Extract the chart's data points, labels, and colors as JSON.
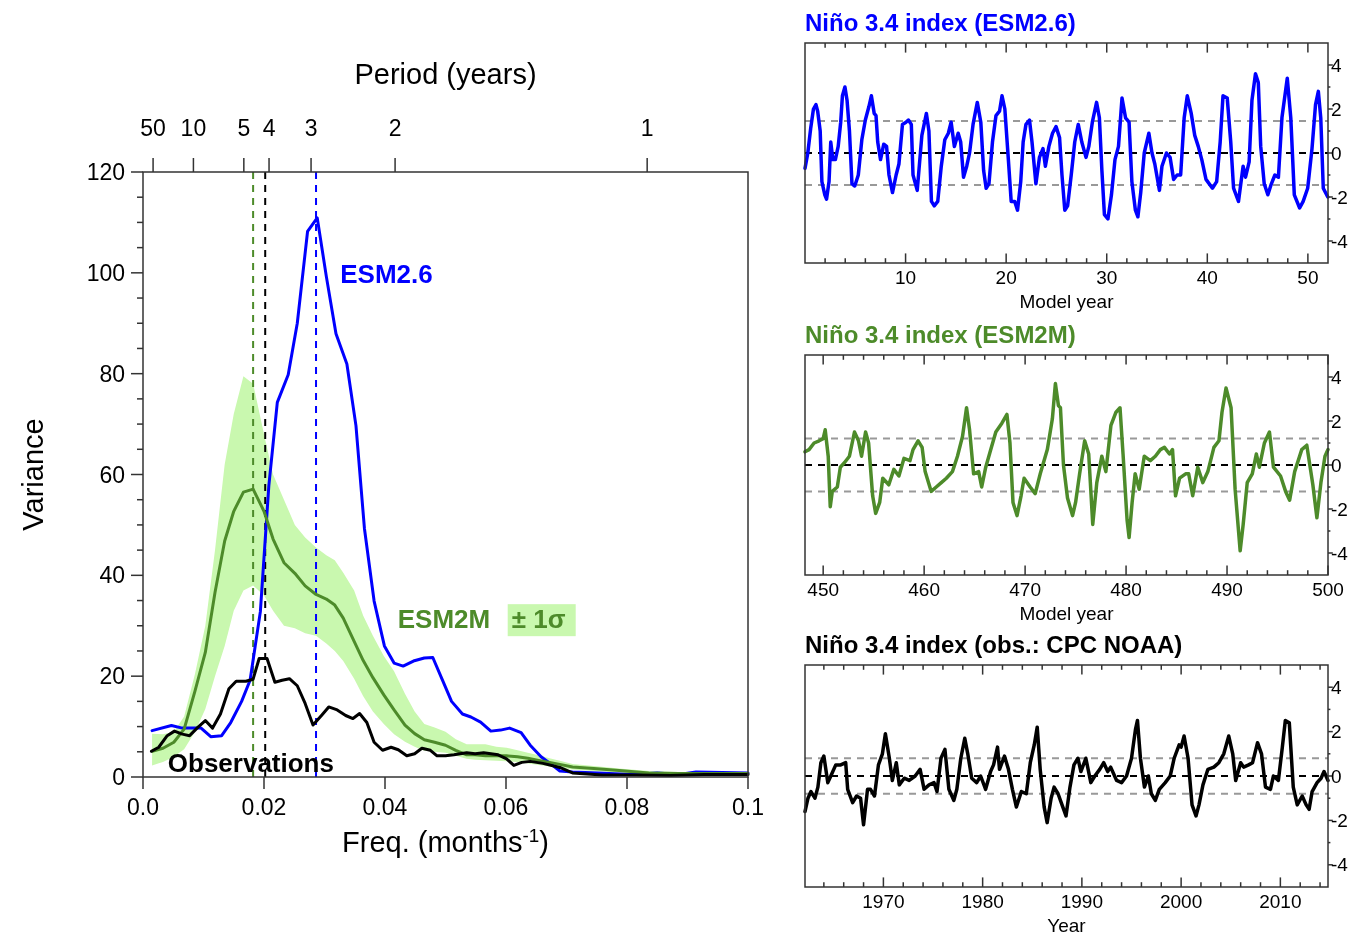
{
  "chart_data": [
    {
      "type": "line",
      "xlabel": "Freq. (months$^{-1}$)",
      "ylabel": "Variance",
      "x2label": "Period (years)",
      "xlim": [
        0,
        0.1
      ],
      "ylim": [
        0,
        120
      ],
      "xticks": [
        {
          "value": 0,
          "label": "0.0"
        },
        0.02,
        0.04,
        0.06,
        0.08,
        0.1
      ],
      "yticks": [
        0,
        {
          "value": 5,
          "label": null
        },
        {
          "value": 10,
          "label": null
        },
        {
          "value": 15,
          "label": null
        },
        20,
        {
          "value": 25,
          "label": null
        },
        {
          "value": 30,
          "label": null
        },
        {
          "value": 35,
          "label": null
        },
        40,
        {
          "value": 45,
          "label": null
        },
        {
          "value": 50,
          "label": null
        },
        {
          "value": 55,
          "label": null
        },
        60,
        {
          "value": 65,
          "label": null
        },
        {
          "value": 70,
          "label": null
        },
        {
          "value": 75,
          "label": null
        },
        80,
        {
          "value": 85,
          "label": null
        },
        {
          "value": 90,
          "label": null
        },
        {
          "value": 95,
          "label": null
        },
        100,
        {
          "value": 105,
          "label": null
        },
        {
          "value": 110,
          "label": null
        },
        {
          "value": 115,
          "label": null
        },
        120
      ],
      "line_style": "solid",
      "marker": "none",
      "legend": false,
      "annotations": [
        "± 1σ",
        "50",
        "10",
        "5",
        "4",
        "3",
        "2",
        "1"
      ],
      "ref_lines": [
        {
          "axis": "x",
          "value": 0.0182,
          "color": "#4d8b2a",
          "line_style": "dashed"
        },
        {
          "axis": "x",
          "value": 0.0202,
          "color": "#000000",
          "line_style": "dashed"
        },
        {
          "axis": "x",
          "value": 0.0286,
          "color": "#0000ff",
          "line_style": "dashed"
        }
      ],
      "series": [
        {
          "name": "ESM2.6",
          "color": "#0000ff",
          "x": [
            0.0015,
            0.0047,
            0.0065,
            0.0096,
            0.0112,
            0.013,
            0.0145,
            0.0163,
            0.0177,
            0.0194,
            0.0208,
            0.0222,
            0.024,
            0.0255,
            0.0272,
            0.0288,
            0.0303,
            0.0319,
            0.0337,
            0.0352,
            0.0366,
            0.0382,
            0.0399,
            0.0415,
            0.043,
            0.0447,
            0.0465,
            0.0479,
            0.0495,
            0.051,
            0.0528,
            0.0542,
            0.0558,
            0.0575,
            0.0591,
            0.0606,
            0.0625,
            0.064,
            0.0658,
            0.0675,
            0.0689,
            0.071,
            0.0752,
            0.0808,
            0.085,
            0.0886,
            0.0914,
            0.1
          ],
          "values": [
            9.2,
            10.2,
            9.7,
            9.7,
            8,
            8.2,
            10.8,
            15,
            19.2,
            32.8,
            57.8,
            74.3,
            79.8,
            90,
            108.2,
            110.9,
            99.3,
            87.9,
            81.9,
            69.7,
            49.3,
            34.9,
            26,
            22.6,
            22,
            23,
            23.6,
            23.7,
            19.2,
            15,
            12.5,
            11.9,
            10.9,
            9.1,
            9.3,
            9.7,
            8.8,
            6.3,
            4,
            2.5,
            1.2,
            1,
            0.8,
            0.5,
            0.8,
            0.5,
            1,
            0.8
          ]
        },
        {
          "name": "ESM2M",
          "color": "#4d8b2a",
          "x": [
            0.0015,
            0.0033,
            0.0051,
            0.0068,
            0.0086,
            0.0103,
            0.0119,
            0.0135,
            0.015,
            0.0166,
            0.0182,
            0.02,
            0.0215,
            0.0233,
            0.0251,
            0.0268,
            0.0286,
            0.0303,
            0.0317,
            0.0331,
            0.0349,
            0.0364,
            0.038,
            0.0398,
            0.0415,
            0.0433,
            0.0449,
            0.0465,
            0.0482,
            0.05,
            0.0517,
            0.0535,
            0.0549,
            0.0566,
            0.0584,
            0.0601,
            0.0619,
            0.0636,
            0.0654,
            0.0672,
            0.0689,
            0.071,
            0.0745,
            0.0787,
            0.0836,
            0.0886,
            0.0942,
            0.1
          ],
          "values": [
            5.1,
            5.7,
            6.9,
            9.5,
            17.1,
            24.7,
            36.6,
            46.8,
            52.7,
            56.5,
            57.1,
            52.7,
            47.2,
            42.5,
            40.4,
            37.9,
            36.2,
            35.3,
            34.1,
            31.5,
            26.9,
            23.1,
            19.7,
            16.3,
            13.3,
            10.3,
            8.6,
            7.4,
            6.9,
            6.3,
            5.3,
            4.4,
            4.4,
            4.2,
            4.2,
            4.2,
            4,
            3.7,
            3.3,
            2.9,
            2.5,
            2,
            1.7,
            1.3,
            0.8,
            0.7,
            0.7,
            0.7
          ],
          "lower": [
            2.3,
            3,
            4,
            5.5,
            9,
            13.5,
            20,
            26,
            33,
            37,
            38,
            36,
            33,
            30,
            29.5,
            28.5,
            28,
            26.5,
            25,
            23,
            19.5,
            16,
            13,
            10.5,
            8.5,
            7,
            6,
            5.2,
            5,
            4.8,
            4.2,
            3.6,
            3.4,
            3.3,
            3.2,
            3.1,
            3,
            2.7,
            2.4,
            2.1,
            1.8,
            1.5,
            1.2,
            0.9,
            0.5,
            0.4,
            0.4,
            0.4
          ],
          "upper": [
            8.6,
            8.5,
            9,
            12,
            20.5,
            30,
            45,
            62,
            72,
            79.5,
            78,
            68,
            60,
            55,
            50,
            47.5,
            45.5,
            44,
            43,
            40.5,
            37,
            32,
            28,
            24,
            21,
            16.5,
            13,
            10.5,
            9.8,
            9,
            7.5,
            6.5,
            6.5,
            6.5,
            6,
            5.8,
            5.3,
            4.8,
            4.3,
            3.7,
            3.2,
            2.6,
            2.2,
            1.7,
            1.2,
            1,
            1,
            1
          ]
        },
        {
          "name": "Observations",
          "color": "#000000",
          "x": [
            0.0014,
            0.0026,
            0.004,
            0.0052,
            0.0065,
            0.0077,
            0.0091,
            0.0103,
            0.0115,
            0.0128,
            0.0142,
            0.0154,
            0.017,
            0.0182,
            0.0192,
            0.0205,
            0.0218,
            0.023,
            0.0242,
            0.0255,
            0.0268,
            0.0281,
            0.0295,
            0.0307,
            0.0321,
            0.0335,
            0.0347,
            0.0358,
            0.037,
            0.0382,
            0.0396,
            0.041,
            0.0422,
            0.0436,
            0.0449,
            0.0461,
            0.0475,
            0.0486,
            0.05,
            0.0514,
            0.0535,
            0.0549,
            0.0563,
            0.0587,
            0.0601,
            0.0613,
            0.0626,
            0.064,
            0.0661,
            0.0689,
            0.071,
            0.0759,
            0.0815,
            0.0872,
            0.0928,
            0.1
          ],
          "values": [
            5.1,
            5.9,
            8.2,
            9.1,
            8.5,
            8.2,
            9.9,
            11.2,
            9.7,
            12.5,
            17.5,
            19,
            19,
            19.4,
            23.5,
            23.5,
            18.8,
            19.2,
            19.5,
            18.1,
            14.6,
            10.3,
            12.2,
            13.9,
            13.3,
            12.2,
            11.6,
            12.6,
            10.8,
            6.9,
            5.3,
            5.9,
            5.4,
            4.2,
            4.6,
            5.7,
            5.3,
            4.2,
            4.2,
            4.4,
            4.8,
            4.6,
            4.8,
            4.4,
            3.6,
            2.3,
            2.9,
            3.1,
            2.7,
            1.9,
            0.8,
            0.4,
            0.4,
            0.3,
            0.5,
            0.5
          ]
        }
      ]
    },
    {
      "type": "line",
      "title": "Niño 3.4 index (ESM2.6)",
      "xlabel": "Model year",
      "xlim": [
        0,
        52
      ],
      "ylim": [
        -5,
        5
      ],
      "xticks": [
        {
          "value": 2,
          "label": null
        },
        {
          "value": 4,
          "label": null
        },
        {
          "value": 6,
          "label": null
        },
        {
          "value": 8,
          "label": null
        },
        10,
        {
          "value": 12,
          "label": null
        },
        {
          "value": 14,
          "label": null
        },
        {
          "value": 16,
          "label": null
        },
        {
          "value": 18,
          "label": null
        },
        20,
        {
          "value": 22,
          "label": null
        },
        {
          "value": 24,
          "label": null
        },
        {
          "value": 26,
          "label": null
        },
        {
          "value": 28,
          "label": null
        },
        30,
        {
          "value": 32,
          "label": null
        },
        {
          "value": 34,
          "label": null
        },
        {
          "value": 36,
          "label": null
        },
        {
          "value": 38,
          "label": null
        },
        40,
        {
          "value": 42,
          "label": null
        },
        {
          "value": 44,
          "label": null
        },
        {
          "value": 46,
          "label": null
        },
        {
          "value": 48,
          "label": null
        },
        50
      ],
      "yticks": [
        -4,
        {
          "value": -3,
          "label": null
        },
        -2,
        {
          "value": -1,
          "label": null
        },
        0,
        {
          "value": 1,
          "label": null
        },
        2,
        {
          "value": 3,
          "label": null
        },
        4
      ],
      "line_style": "solid",
      "marker": "none",
      "legend": false,
      "ref_lines": [
        {
          "axis": "y",
          "value": 0,
          "color": "#000000",
          "line_style": "dashed"
        },
        {
          "axis": "y",
          "value": 1.45,
          "color": "#999999",
          "line_style": "dashed"
        },
        {
          "axis": "y",
          "value": -1.45,
          "color": "#999999",
          "line_style": "dashed"
        }
      ],
      "series": [
        {
          "color": "#0000ff",
          "x": [
            0,
            0.28,
            0.56,
            0.84,
            1.09,
            1.26,
            1.51,
            1.68,
            1.97,
            2.14,
            2.39,
            2.56,
            2.77,
            3.02,
            3.3,
            3.55,
            3.72,
            3.97,
            4.18,
            4.42,
            4.67,
            4.95,
            5.3,
            5.65,
            6,
            6.35,
            6.6,
            6.88,
            7.06,
            7.23,
            7.51,
            7.83,
            8.11,
            8.35,
            8.7,
            9.06,
            9.34,
            9.69,
            10.04,
            10.28,
            10.57,
            10.74,
            11.16,
            11.62,
            12.07,
            12.32,
            12.57,
            12.85,
            13.2,
            13.55,
            13.9,
            14.25,
            14.53,
            14.85,
            15.23,
            15.48,
            15.76,
            16.08,
            16.36,
            16.71,
            17.13,
            17.48,
            17.76,
            18.01,
            18.29,
            18.64,
            18.99,
            19.34,
            19.59,
            19.87,
            20.22,
            20.5,
            20.85,
            21.13,
            21.45,
            21.69,
            21.97,
            22.32,
            22.57,
            22.96,
            23.31,
            23.66,
            23.9,
            24.25,
            24.61,
            24.96,
            25.31,
            25.55,
            25.83,
            26.11,
            26.47,
            26.82,
            27.17,
            27.52,
            27.94,
            28.22,
            28.57,
            28.99,
            29.27,
            29.52,
            29.77,
            30.12,
            30.47,
            30.82,
            31.17,
            31.52,
            31.87,
            32.22,
            32.5,
            32.85,
            33.1,
            33.38,
            33.73,
            34.19,
            34.5,
            34.78,
            35.24,
            35.49,
            35.94,
            36.3,
            36.65,
            37,
            37.35,
            37.7,
            38.01,
            38.4,
            38.75,
            39.1,
            39.45,
            39.87,
            40.51,
            40.93,
            41.28,
            41.56,
            41.98,
            42.33,
            42.61,
            43.1,
            43.56,
            43.8,
            44.16,
            44.44,
            44.79,
            45.07,
            45.31,
            45.66,
            46.02,
            46.37,
            46.72,
            47.07,
            47.42,
            47.95,
            48.3,
            48.65,
            49.18,
            49.53,
            49.98,
            50.41,
            50.76,
            51.04,
            51.28,
            51.53,
            51.98
          ],
          "values": [
            -0.7,
            0,
            1.1,
            2,
            2.2,
            1.9,
            1,
            -1.3,
            -1.9,
            -2.1,
            -1.3,
            0.5,
            -0.3,
            -0.3,
            0.3,
            1.4,
            2.6,
            3,
            2.4,
            1,
            -1.4,
            -1.5,
            -1,
            0.6,
            1.5,
            2.1,
            2.6,
            1.8,
            1.7,
            0.5,
            -0.3,
            0.4,
            0.3,
            -1,
            -1.8,
            -1,
            -0.5,
            1.3,
            1.4,
            1.5,
            1.3,
            -1,
            -1.7,
            0.8,
            1.8,
            1,
            -2.2,
            -2.4,
            -2.2,
            -0.6,
            0.6,
            0.9,
            1.4,
            0.3,
            0.9,
            0.5,
            -1.1,
            -0.6,
            0,
            1.3,
            2.3,
            1.4,
            -0.8,
            -1.6,
            -1.4,
            0.5,
            1.7,
            1.9,
            2.6,
            2,
            -0.3,
            -2.2,
            -2.2,
            -2.6,
            -1.3,
            0.5,
            1.3,
            1.5,
            0.5,
            -1.4,
            -0.2,
            0.2,
            -0.6,
            0.3,
            0.9,
            1.2,
            0.7,
            -1,
            -2.6,
            -2.4,
            -1,
            0.5,
            1.3,
            0.5,
            -0.2,
            0.3,
            1.4,
            2.3,
            1.6,
            -0.8,
            -2.8,
            -3,
            -1.9,
            -0.3,
            0.3,
            2.5,
            1.6,
            1.4,
            -1.3,
            -2.6,
            -2.9,
            -1.8,
            0,
            0.9,
            0,
            -0.5,
            -1.7,
            -0.6,
            0,
            -0.2,
            -1.2,
            -1,
            -1,
            1.6,
            2.6,
            1.8,
            0.8,
            0.3,
            -0.3,
            -1.2,
            -1.6,
            -1.3,
            0.5,
            2.6,
            2.5,
            0.5,
            -1.6,
            -2.2,
            -0.6,
            -1.1,
            -0.4,
            2.4,
            3.6,
            3.2,
            0.3,
            -1.4,
            -1.9,
            -1.4,
            -1,
            -1.1,
            1.6,
            3.4,
            1.6,
            -1.9,
            -2.5,
            -2.2,
            -1.6,
            0.2,
            2.2,
            2.8,
            1.6,
            -1.6,
            -2
          ]
        }
      ]
    },
    {
      "type": "line",
      "title": "Niño 3.4 index (ESM2M)",
      "xlabel": "Model year",
      "xlim": [
        448.2,
        500
      ],
      "ylim": [
        -5,
        5
      ],
      "xticks": [
        450,
        {
          "value": 452,
          "label": null
        },
        {
          "value": 454,
          "label": null
        },
        {
          "value": 456,
          "label": null
        },
        {
          "value": 458,
          "label": null
        },
        460,
        {
          "value": 462,
          "label": null
        },
        {
          "value": 464,
          "label": null
        },
        {
          "value": 466,
          "label": null
        },
        {
          "value": 468,
          "label": null
        },
        470,
        {
          "value": 472,
          "label": null
        },
        {
          "value": 474,
          "label": null
        },
        {
          "value": 476,
          "label": null
        },
        {
          "value": 478,
          "label": null
        },
        480,
        {
          "value": 482,
          "label": null
        },
        {
          "value": 484,
          "label": null
        },
        {
          "value": 486,
          "label": null
        },
        {
          "value": 488,
          "label": null
        },
        490,
        {
          "value": 492,
          "label": null
        },
        {
          "value": 494,
          "label": null
        },
        {
          "value": 496,
          "label": null
        },
        {
          "value": 498,
          "label": null
        },
        500
      ],
      "yticks": [
        -4,
        {
          "value": -3,
          "label": null
        },
        -2,
        {
          "value": -1,
          "label": null
        },
        0,
        {
          "value": 1,
          "label": null
        },
        2,
        {
          "value": 3,
          "label": null
        },
        4
      ],
      "line_style": "solid",
      "marker": "none",
      "legend": false,
      "ref_lines": [
        {
          "axis": "y",
          "value": 0,
          "color": "#000000",
          "line_style": "dashed"
        },
        {
          "axis": "y",
          "value": 1.2,
          "color": "#999999",
          "line_style": "dashed"
        },
        {
          "axis": "y",
          "value": -1.2,
          "color": "#999999",
          "line_style": "dashed"
        }
      ],
      "series": [
        {
          "color": "#4d8b2a",
          "x": [
            448.2,
            448.6,
            449.1,
            449.6,
            450,
            450.2,
            450.5,
            450.7,
            450.9,
            451.4,
            451.7,
            452.1,
            452.6,
            453.1,
            453.5,
            453.8,
            454.2,
            454.5,
            454.9,
            455.2,
            455.6,
            455.9,
            456.5,
            457,
            457.5,
            458,
            458.6,
            458.9,
            459.4,
            459.8,
            460.1,
            460.7,
            461.2,
            461.7,
            462.2,
            462.8,
            463.3,
            463.8,
            464.2,
            464.5,
            464.9,
            465.4,
            465.7,
            466.1,
            466.6,
            467.1,
            467.7,
            468.2,
            468.5,
            468.8,
            469.2,
            469.6,
            469.9,
            470.5,
            471,
            471.5,
            472.2,
            472.7,
            473,
            473.3,
            473.5,
            473.8,
            474.2,
            474.7,
            475,
            475.4,
            475.9,
            476.3,
            476.7,
            477.1,
            477.6,
            478,
            478.5,
            479,
            479.4,
            479.7,
            480.1,
            480.3,
            480.6,
            480.9,
            481.3,
            481.8,
            482.4,
            482.9,
            483.4,
            483.8,
            484.3,
            484.6,
            484.9,
            485.3,
            485.9,
            486.2,
            486.6,
            487.1,
            487.6,
            488.1,
            488.7,
            489.2,
            489.5,
            489.9,
            490.4,
            490.8,
            491.3,
            491.6,
            492,
            492.5,
            492.9,
            493.2,
            493.7,
            494.2,
            494.6,
            495.3,
            495.8,
            496.2,
            496.7,
            497.4,
            497.9,
            498.5,
            498.9,
            499.3,
            499.7,
            500
          ],
          "values": [
            0.6,
            0.7,
            1,
            1.1,
            1.2,
            1.6,
            0.4,
            -1.9,
            -1.2,
            -1,
            -0.1,
            0.1,
            0.4,
            1.5,
            1.1,
            0.4,
            1.5,
            1,
            -1.4,
            -2.2,
            -1.7,
            -0.6,
            -0.9,
            -0.2,
            -0.5,
            0.3,
            0.2,
            0.7,
            1.1,
            0.8,
            -0.3,
            -1.2,
            -1,
            -0.8,
            -0.6,
            -0.3,
            0.4,
            1.3,
            2.6,
            1.6,
            -0.4,
            -0.3,
            -1,
            -0.1,
            0.7,
            1.5,
            1.9,
            2.3,
            1,
            -1.7,
            -2.3,
            -1.4,
            -0.6,
            -1,
            -1.3,
            -0.4,
            0.7,
            2.1,
            3.7,
            2.7,
            2.6,
            0,
            -1.5,
            -2.3,
            -1.7,
            -0.4,
            1.1,
            0.5,
            -2.7,
            -0.8,
            0.4,
            -0.3,
            1.8,
            2.4,
            2.6,
            0.5,
            -2.5,
            -3.3,
            -1.7,
            -0.4,
            -1.1,
            0.4,
            0.2,
            0.4,
            0.7,
            0.8,
            0.5,
            0.7,
            -1.4,
            -0.6,
            -0.4,
            -0.4,
            -1.4,
            -0.1,
            -0.8,
            -0.3,
            0.8,
            1.1,
            2.4,
            3.5,
            2.6,
            -1.1,
            -3.9,
            -2.7,
            -0.8,
            -0.4,
            0.5,
            -0.1,
            1,
            1.5,
            -0.1,
            -0.5,
            -1.2,
            -1.6,
            -0.3,
            0.7,
            0.9,
            -0.9,
            -2.4,
            -0.8,
            0.4,
            0.7
          ]
        }
      ]
    },
    {
      "type": "line",
      "title": "Niño 3.4 index (obs.: CPC NOAA)",
      "xlabel": "Year",
      "xlim": [
        1962.1,
        2014.8
      ],
      "ylim": [
        -5,
        5
      ],
      "xticks": [
        {
          "value": 1964,
          "label": null
        },
        {
          "value": 1966,
          "label": null
        },
        {
          "value": 1968,
          "label": null
        },
        1970,
        {
          "value": 1972,
          "label": null
        },
        {
          "value": 1974,
          "label": null
        },
        {
          "value": 1976,
          "label": null
        },
        {
          "value": 1978,
          "label": null
        },
        1980,
        {
          "value": 1982,
          "label": null
        },
        {
          "value": 1984,
          "label": null
        },
        {
          "value": 1986,
          "label": null
        },
        {
          "value": 1988,
          "label": null
        },
        1990,
        {
          "value": 1992,
          "label": null
        },
        {
          "value": 1994,
          "label": null
        },
        {
          "value": 1996,
          "label": null
        },
        {
          "value": 1998,
          "label": null
        },
        2000,
        {
          "value": 2002,
          "label": null
        },
        {
          "value": 2004,
          "label": null
        },
        {
          "value": 2006,
          "label": null
        },
        {
          "value": 2008,
          "label": null
        },
        2010,
        {
          "value": 2012,
          "label": null
        },
        {
          "value": 2014,
          "label": null
        }
      ],
      "yticks": [
        -4,
        {
          "value": -3,
          "label": null
        },
        -2,
        {
          "value": -1,
          "label": null
        },
        0,
        {
          "value": 1,
          "label": null
        },
        2,
        {
          "value": 3,
          "label": null
        },
        4
      ],
      "line_style": "solid",
      "marker": "none",
      "legend": false,
      "ref_lines": [
        {
          "axis": "y",
          "value": 0,
          "color": "#000000",
          "line_style": "dashed"
        },
        {
          "axis": "y",
          "value": 0.8,
          "color": "#999999",
          "line_style": "dashed"
        },
        {
          "axis": "y",
          "value": -0.8,
          "color": "#999999",
          "line_style": "dashed"
        }
      ],
      "series": [
        {
          "color": "#000000",
          "x": [
            1962.1,
            1962.4,
            1962.7,
            1963.1,
            1963.4,
            1963.7,
            1964,
            1964.4,
            1964.7,
            1965.2,
            1965.7,
            1966.2,
            1966.4,
            1966.9,
            1967.3,
            1967.7,
            1968,
            1968.4,
            1968.7,
            1969.1,
            1969.5,
            1969.9,
            1970.2,
            1970.6,
            1970.9,
            1971.3,
            1971.6,
            1972.1,
            1972.6,
            1973.2,
            1973.7,
            1974.1,
            1974.6,
            1975.1,
            1975.4,
            1975.8,
            1976.2,
            1976.6,
            1977.1,
            1977.4,
            1977.8,
            1978.2,
            1978.5,
            1978.9,
            1979.4,
            1979.8,
            1980.3,
            1980.8,
            1981.1,
            1981.5,
            1981.7,
            1982.2,
            1982.6,
            1983,
            1983.4,
            1983.9,
            1984.4,
            1984.8,
            1985.2,
            1985.5,
            1985.8,
            1986.2,
            1986.5,
            1986.9,
            1987.2,
            1987.6,
            1988,
            1988.4,
            1988.8,
            1989.2,
            1989.6,
            1989.9,
            1990.4,
            1990.9,
            1991.3,
            1991.8,
            1992.2,
            1992.6,
            1992.9,
            1993.5,
            1994,
            1994.5,
            1995,
            1995.4,
            1995.6,
            1995.9,
            1996.3,
            1996.7,
            1997,
            1997.4,
            1997.8,
            1998.4,
            1998.9,
            1999.3,
            1999.8,
            2000,
            2000.3,
            2000.7,
            2001.1,
            2001.5,
            2001.8,
            2002.2,
            2002.7,
            2003.3,
            2003.8,
            2004.3,
            2004.8,
            2005.2,
            2005.5,
            2006,
            2006.3,
            2006.8,
            2007.2,
            2007.7,
            2008.1,
            2008.5,
            2009,
            2009.3,
            2009.8,
            2010.2,
            2010.5,
            2010.9,
            2011.3,
            2011.7,
            2012.2,
            2012.6,
            2012.9,
            2013.2,
            2013.7,
            2014.1,
            2014.4,
            2014.8
          ],
          "values": [
            -1.6,
            -1,
            -0.7,
            -1,
            -0.5,
            0.6,
            0.9,
            -0.3,
            0,
            0.5,
            0.5,
            0.6,
            -0.6,
            -1.2,
            -0.9,
            -1,
            -2.2,
            -0.6,
            -0.6,
            -0.9,
            0.5,
            1,
            1.9,
            0.8,
            -0.2,
            0.6,
            -0.4,
            -0.1,
            -0.2,
            0,
            0.3,
            -0.6,
            -0.4,
            -0.3,
            -0.7,
            0.8,
            1.2,
            -0.6,
            -1.1,
            -0.6,
            0.8,
            1.7,
            1,
            -0.1,
            -0.3,
            0,
            -0.6,
            0.2,
            0.5,
            1.3,
            0.3,
            0.9,
            0.3,
            -0.6,
            -1.4,
            -0.7,
            -0.8,
            0.6,
            1.4,
            2.2,
            0.3,
            -1.4,
            -2.1,
            -1,
            -0.5,
            -0.8,
            -1.3,
            -1.8,
            -0.5,
            0.5,
            0.8,
            0.2,
            0.8,
            -0.3,
            0,
            0.3,
            0.6,
            0.2,
            0.4,
            -0.2,
            -0.3,
            0,
            0.8,
            2.1,
            2.5,
            0.8,
            -0.5,
            0,
            -0.8,
            -1.1,
            -0.6,
            -0.3,
            0,
            0.8,
            1.4,
            1.3,
            1.8,
            0.8,
            -1.3,
            -1.8,
            -1.3,
            -0.4,
            0.3,
            0.4,
            0.6,
            1,
            1.8,
            1,
            -0.2,
            0.6,
            0.4,
            0.5,
            0.6,
            1.5,
            1,
            -0.5,
            -0.6,
            0,
            -0.2,
            1.3,
            2.5,
            2.4,
            -0.5,
            -1.3,
            -0.9,
            -1.3,
            -1.5,
            -0.7,
            -0.3,
            -0.1,
            0.2,
            -0.2
          ]
        }
      ]
    }
  ]
}
